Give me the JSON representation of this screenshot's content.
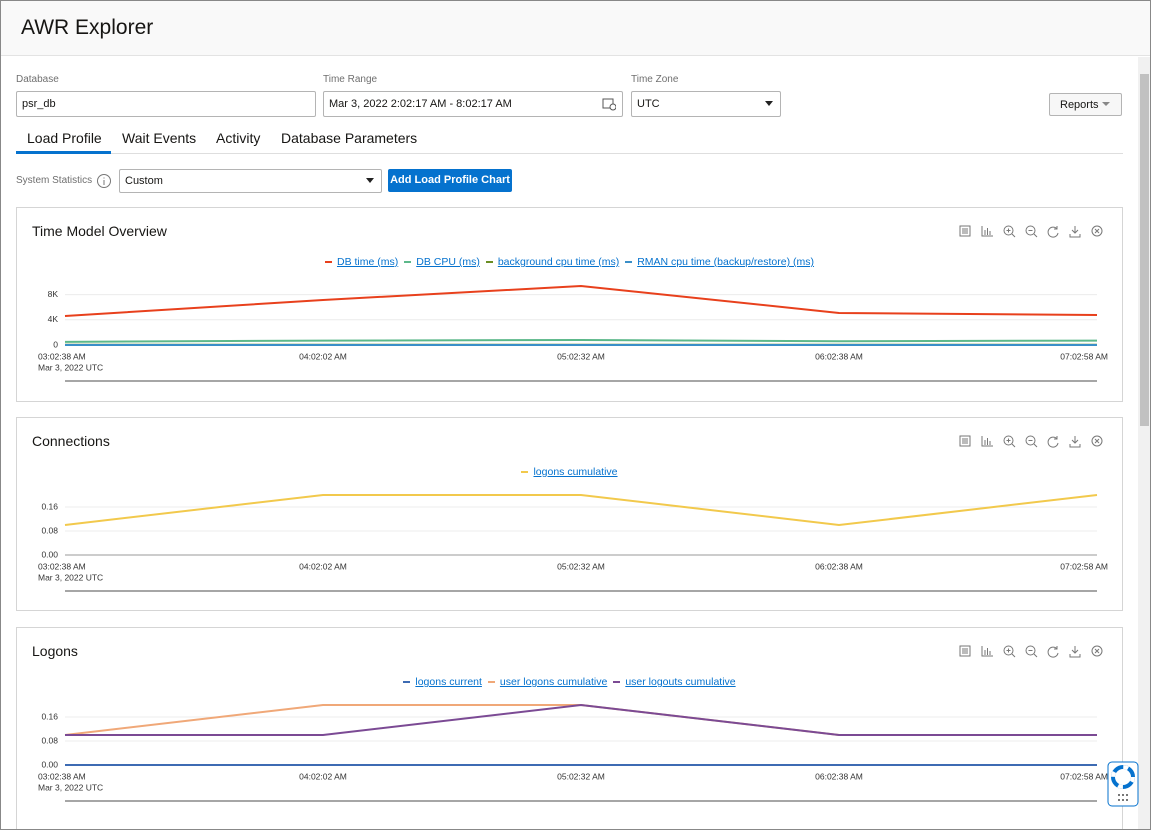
{
  "header": {
    "title": "AWR Explorer"
  },
  "filters": {
    "database": {
      "label": "Database",
      "value": "psr_db"
    },
    "time_range": {
      "label": "Time Range",
      "value": "Mar 3, 2022 2:02:17 AM - 8:02:17 AM"
    },
    "time_zone": {
      "label": "Time Zone",
      "value": "UTC"
    },
    "reports": "Reports"
  },
  "tabs": [
    "Load Profile",
    "Wait Events",
    "Activity",
    "Database Parameters"
  ],
  "statistics": {
    "label": "System Statistics",
    "value": "Custom",
    "button": "Add Load Profile Chart"
  },
  "chart_data": [
    {
      "type": "line",
      "title": "Time Model Overview",
      "categories": [
        "03:02:38 AM",
        "04:02:02 AM",
        "05:02:32 AM",
        "06:02:38 AM",
        "07:02:58 AM"
      ],
      "x_sublabel": "Mar 3, 2022 UTC",
      "series": [
        {
          "name": "DB time (ms)",
          "color": "#e8401c",
          "values": [
            4600,
            7140,
            9370,
            5080,
            4760
          ]
        },
        {
          "name": "DB CPU (ms)",
          "color": "#5cb88a",
          "values": [
            500,
            700,
            800,
            600,
            700
          ]
        },
        {
          "name": "background cpu time (ms)",
          "color": "#6a8e23",
          "values": [
            30,
            30,
            30,
            30,
            30
          ]
        },
        {
          "name": "RMAN cpu time (backup/restore) (ms)",
          "color": "#3a8fc8",
          "values": [
            0,
            0,
            0,
            0,
            0
          ]
        }
      ],
      "ylim": [
        0,
        10000
      ],
      "yticks": [
        0,
        {
          "value": 4000,
          "label": "4K"
        },
        {
          "value": 8000,
          "label": "8K"
        }
      ],
      "grid": true
    },
    {
      "type": "line",
      "title": "Connections",
      "categories": [
        "03:02:38 AM",
        "04:02:02 AM",
        "05:02:32 AM",
        "06:02:38 AM",
        "07:02:58 AM"
      ],
      "x_sublabel": "Mar 3, 2022 UTC",
      "series": [
        {
          "name": "logons cumulative",
          "color": "#f2c94c",
          "values": [
            0.1,
            0.2,
            0.2,
            0.1,
            0.2
          ]
        }
      ],
      "ylim": [
        0,
        0.21
      ],
      "yticks": [
        {
          "value": 0,
          "label": "0.00"
        },
        0.08,
        0.16
      ],
      "grid": true
    },
    {
      "type": "line",
      "title": "Logons",
      "categories": [
        "03:02:38 AM",
        "04:02:02 AM",
        "05:02:32 AM",
        "06:02:38 AM",
        "07:02:58 AM"
      ],
      "x_sublabel": "Mar 3, 2022 UTC",
      "series": [
        {
          "name": "logons current",
          "color": "#3d6bb3",
          "values": [
            0,
            0,
            0,
            0,
            0
          ]
        },
        {
          "name": "user logons cumulative",
          "color": "#f0a878",
          "values": [
            0.1,
            0.2,
            0.2,
            0.1,
            0.1
          ]
        },
        {
          "name": "user logouts cumulative",
          "color": "#7b4a94",
          "values": [
            0.1,
            0.1,
            0.2,
            0.1,
            0.1
          ]
        }
      ],
      "ylim": [
        0,
        0.21
      ],
      "yticks": [
        {
          "value": 0,
          "label": "0.00"
        },
        0.08,
        0.16
      ],
      "grid": true
    }
  ]
}
